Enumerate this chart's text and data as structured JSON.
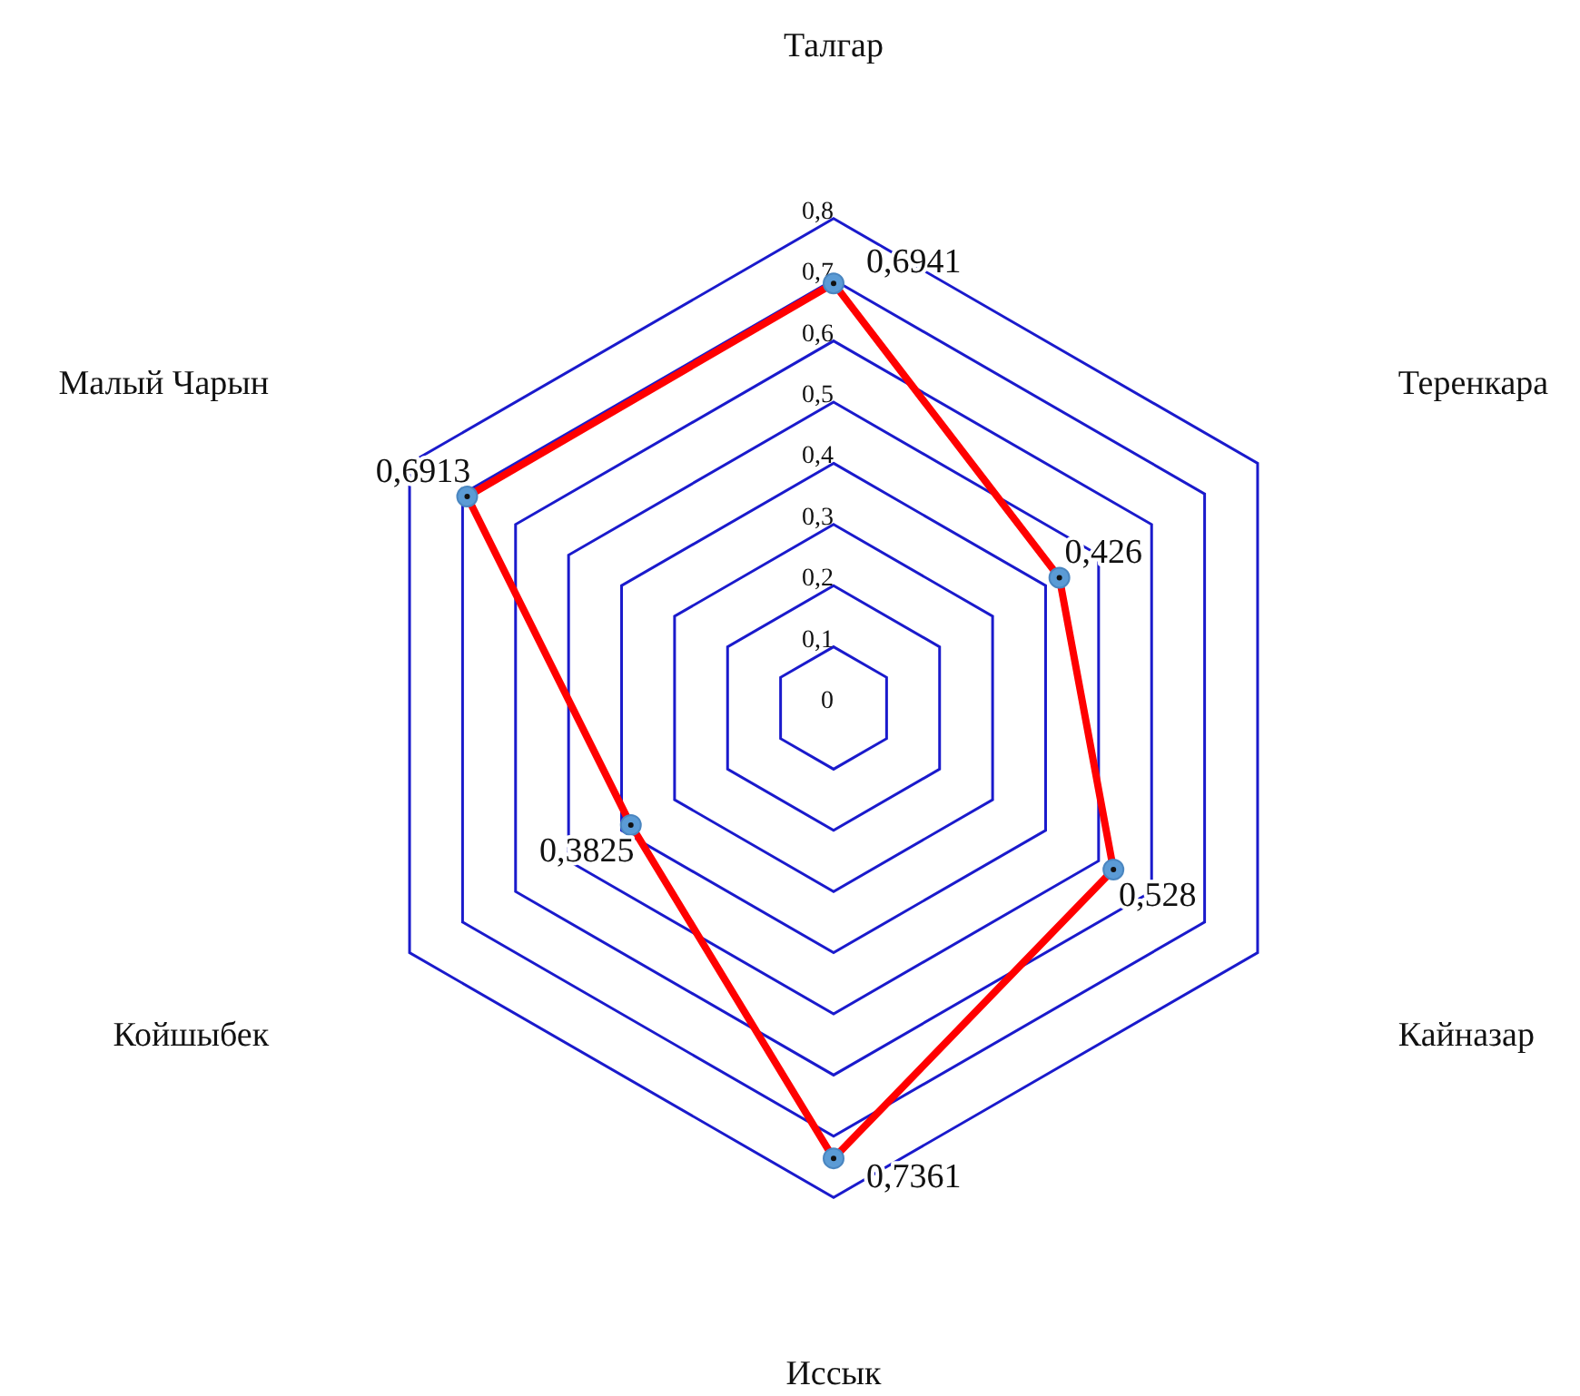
{
  "chart_data": {
    "type": "radar",
    "categories": [
      "Талгар",
      "Теренкара",
      "Кайназар",
      "Иссык",
      "Койшыбек",
      "Малый Чарын"
    ],
    "series": [
      {
        "color": "#ff0000",
        "values": [
          0.6941,
          0.426,
          0.528,
          0.7361,
          0.3825,
          0.6913
        ],
        "value_labels": [
          "0,6941",
          "0,426",
          "0,528",
          "0,7361",
          "0,3825",
          "0,6913"
        ]
      }
    ],
    "ylim": [
      0,
      0.8
    ],
    "yticks": [
      {
        "value": 0,
        "label": "0"
      },
      {
        "value": 0.1,
        "label": "0,1"
      },
      {
        "value": 0.2,
        "label": "0,2"
      },
      {
        "value": 0.3,
        "label": "0,3"
      },
      {
        "value": 0.4,
        "label": "0,4"
      },
      {
        "value": 0.5,
        "label": "0,5"
      },
      {
        "value": 0.6,
        "label": "0,6"
      },
      {
        "value": 0.7,
        "label": "0,7"
      },
      {
        "value": 0.8,
        "label": "0,8"
      }
    ],
    "grid": true,
    "marker": "circle",
    "line_style": "solid"
  }
}
